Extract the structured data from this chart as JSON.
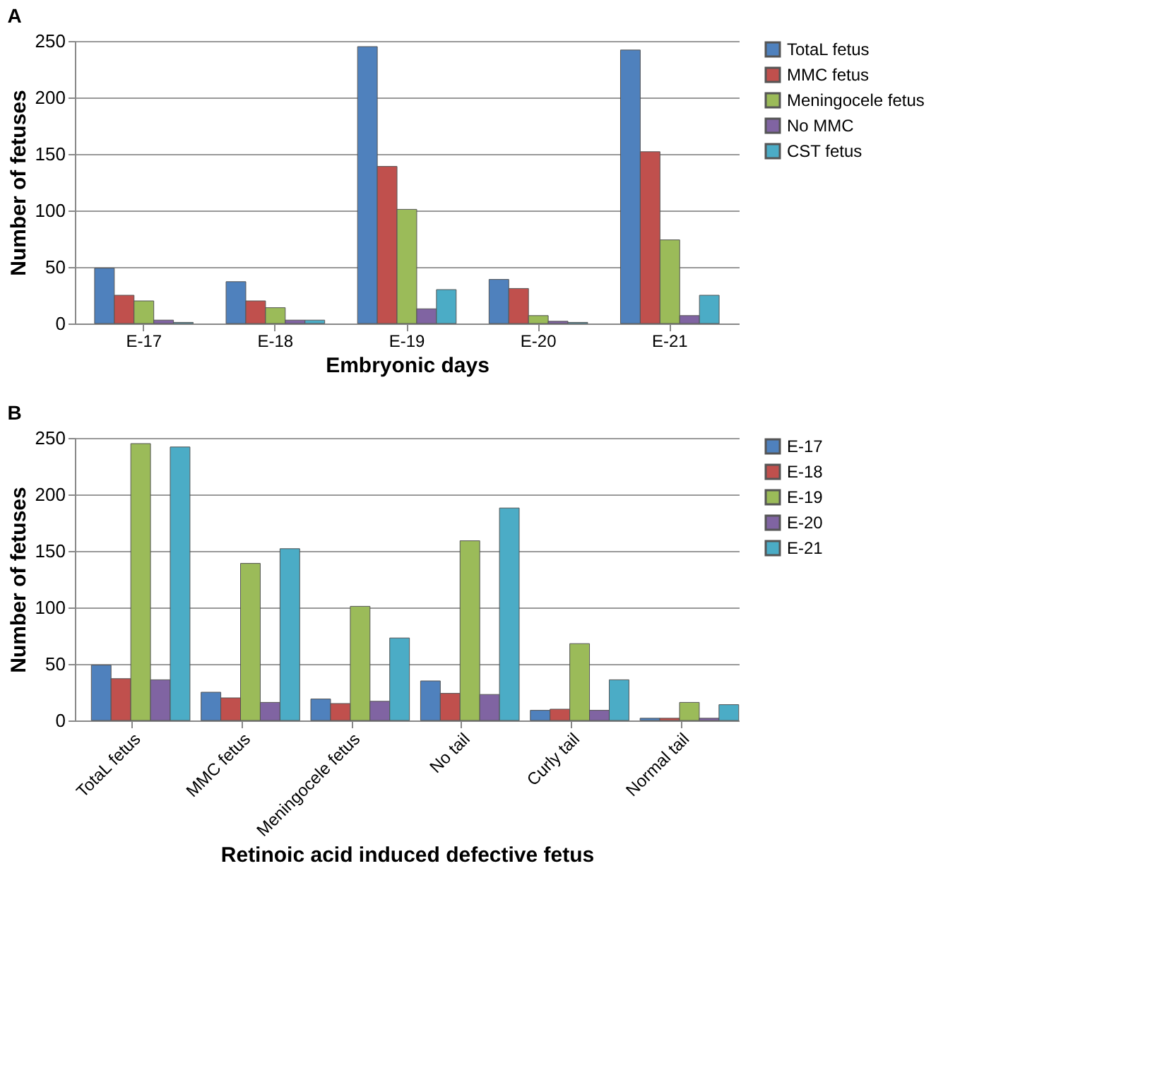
{
  "chart_data": [
    {
      "type": "bar",
      "title": "A",
      "xlabel": "Embryonic days",
      "ylabel": "Number of fetuses",
      "categories": [
        "E-17",
        "E-18",
        "E-19",
        "E-20",
        "E-21"
      ],
      "ylim": [
        0,
        250
      ],
      "yticks": [
        0,
        50,
        100,
        150,
        200,
        250
      ],
      "grid": "y",
      "legend": "right",
      "series": [
        {
          "name": "TotaL fetus",
          "color": "#4f81bd",
          "values": [
            49,
            37,
            245,
            39,
            242
          ]
        },
        {
          "name": "MMC fetus",
          "color": "#c0504d",
          "values": [
            25,
            20,
            139,
            31,
            152
          ]
        },
        {
          "name": "Meningocele fetus",
          "color": "#9bbb59",
          "values": [
            20,
            14,
            101,
            7,
            74
          ]
        },
        {
          "name": "No MMC",
          "color": "#8064a2",
          "values": [
            3,
            3,
            13,
            2,
            7
          ]
        },
        {
          "name": "CST fetus",
          "color": "#4bacc6",
          "values": [
            1,
            3,
            30,
            1,
            25
          ]
        }
      ]
    },
    {
      "type": "bar",
      "title": "B",
      "xlabel": "Retinoic acid induced defective fetus",
      "ylabel": "Number of fetuses",
      "categories": [
        "TotaL fetus",
        "MMC fetus",
        "Meningocele fetus",
        "No tail",
        "Curly tail",
        "Normal tail"
      ],
      "ylim": [
        0,
        250
      ],
      "yticks": [
        0,
        50,
        100,
        150,
        200,
        250
      ],
      "grid": "y",
      "legend": "right",
      "series": [
        {
          "name": "E-17",
          "color": "#4f81bd",
          "values": [
            49,
            25,
            19,
            35,
            9,
            2
          ]
        },
        {
          "name": "E-18",
          "color": "#c0504d",
          "values": [
            37,
            20,
            15,
            24,
            10,
            2
          ]
        },
        {
          "name": "E-19",
          "color": "#9bbb59",
          "values": [
            245,
            139,
            101,
            159,
            68,
            16
          ]
        },
        {
          "name": "E-20",
          "color": "#8064a2",
          "values": [
            36,
            16,
            17,
            23,
            9,
            2
          ]
        },
        {
          "name": "E-21",
          "color": "#4bacc6",
          "values": [
            242,
            152,
            73,
            188,
            36,
            14
          ]
        }
      ]
    }
  ]
}
